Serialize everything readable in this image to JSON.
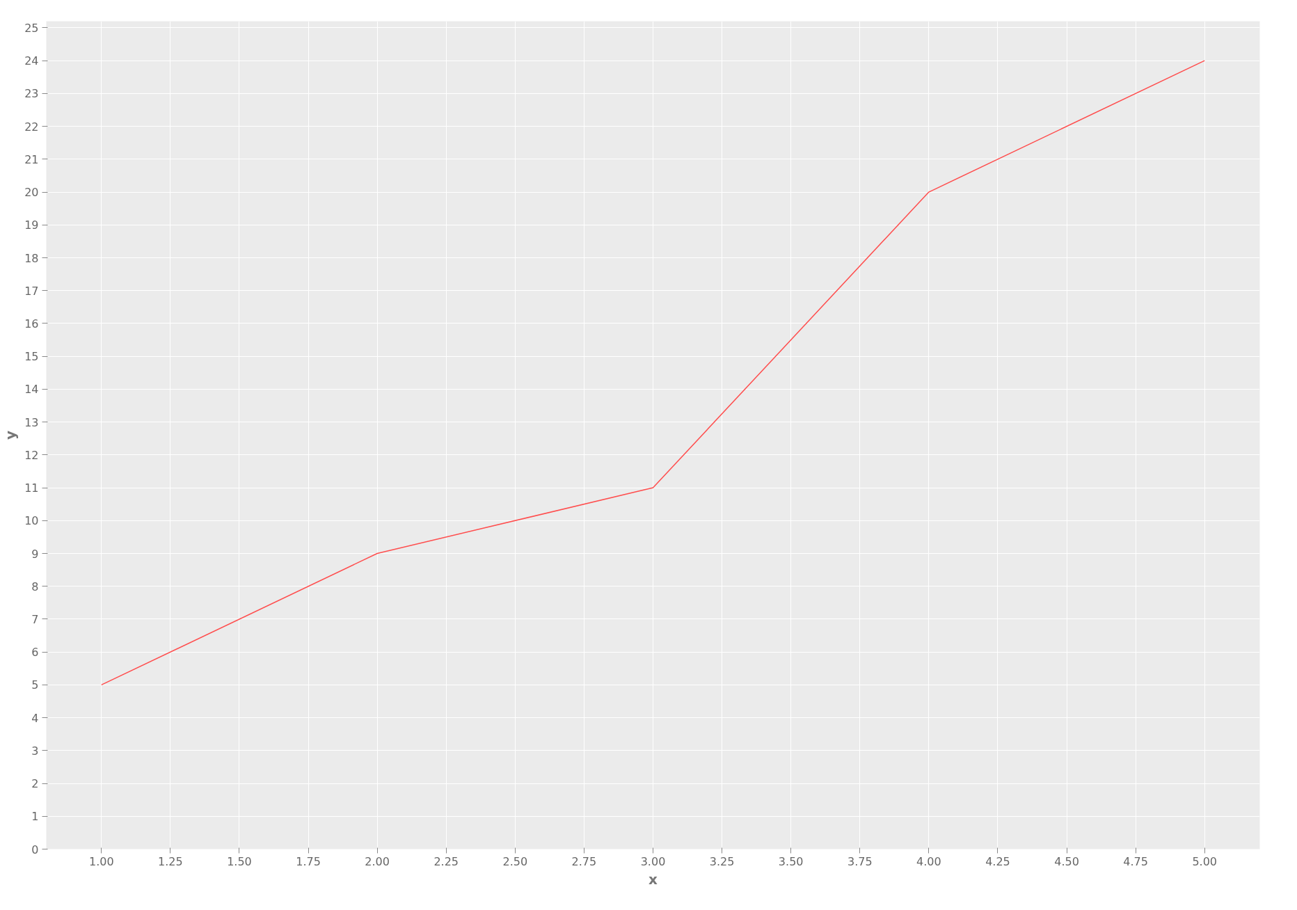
{
  "chart_data": {
    "type": "line",
    "xlabel": "x",
    "ylabel": "y",
    "x": [
      1,
      2,
      3,
      4,
      5
    ],
    "series": [
      {
        "color": "#ff4d4d",
        "values": [
          5,
          9,
          11,
          20,
          24
        ]
      }
    ],
    "xlim": [
      0.8,
      5.2
    ],
    "ylim": [
      0,
      25.2
    ],
    "xticks": [
      {
        "value": 1,
        "label": "1.00"
      },
      {
        "value": 1.25,
        "label": "1.25"
      },
      {
        "value": 1.5,
        "label": "1.50"
      },
      {
        "value": 1.75,
        "label": "1.75"
      },
      {
        "value": 2,
        "label": "2.00"
      },
      {
        "value": 2.25,
        "label": "2.25"
      },
      {
        "value": 2.5,
        "label": "2.50"
      },
      {
        "value": 2.75,
        "label": "2.75"
      },
      {
        "value": 3,
        "label": "3.00"
      },
      {
        "value": 3.25,
        "label": "3.25"
      },
      {
        "value": 3.5,
        "label": "3.50"
      },
      {
        "value": 3.75,
        "label": "3.75"
      },
      {
        "value": 4,
        "label": "4.00"
      },
      {
        "value": 4.25,
        "label": "4.25"
      },
      {
        "value": 4.5,
        "label": "4.50"
      },
      {
        "value": 4.75,
        "label": "4.75"
      },
      {
        "value": 5,
        "label": "5.00"
      }
    ],
    "yticks": [
      0,
      1,
      2,
      3,
      4,
      5,
      6,
      7,
      8,
      9,
      10,
      11,
      12,
      13,
      14,
      15,
      16,
      17,
      18,
      19,
      20,
      21,
      22,
      23,
      24,
      25
    ],
    "grid": true,
    "marker": "none",
    "line_style": "solid"
  }
}
